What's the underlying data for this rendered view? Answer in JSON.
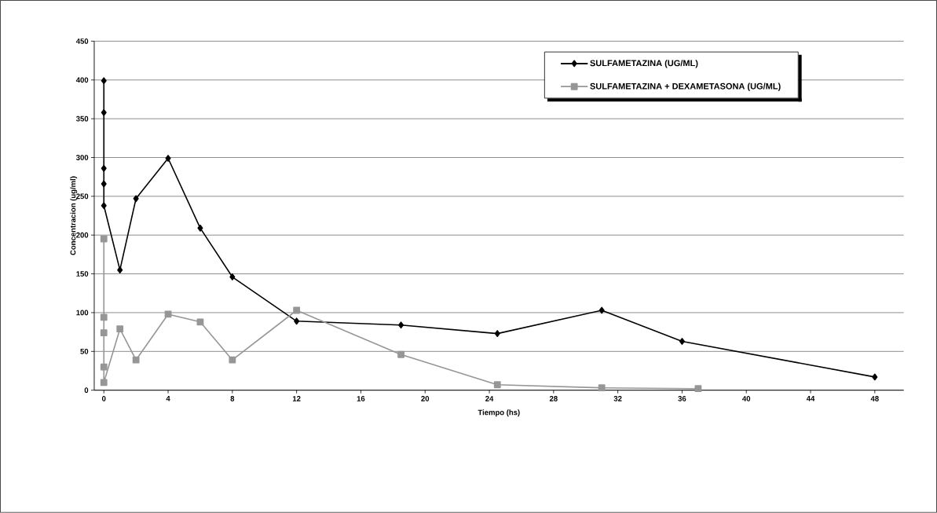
{
  "chart_data": {
    "type": "line",
    "xlabel": "Tiempo (hs)",
    "ylabel": "Concentracion (ug/ml)",
    "xlim": [
      -0.6,
      49.8
    ],
    "ylim": [
      0,
      450
    ],
    "xticks": [
      0,
      4,
      8,
      12,
      16,
      20,
      24,
      28,
      32,
      36,
      40,
      44,
      48
    ],
    "yticks": [
      0,
      50,
      100,
      150,
      200,
      250,
      300,
      350,
      400,
      450
    ],
    "grid": "y",
    "legend": "top right",
    "line_style": "solid",
    "series": [
      {
        "name": "SULFAMETAZINA (UG/ML)",
        "color": "#000000",
        "marker": "diamond",
        "x": [
          0,
          0,
          0,
          0,
          0,
          1,
          2,
          4,
          6,
          8,
          12,
          18.5,
          24.5,
          31,
          36,
          48
        ],
        "values": [
          399,
          358,
          286,
          266,
          238,
          155,
          247,
          299,
          209,
          146,
          89,
          84,
          73,
          103,
          63,
          17
        ]
      },
      {
        "name": "SULFAMETAZINA + DEXAMETASONA (UG/ML)",
        "color": "#969696",
        "marker": "square",
        "x": [
          0,
          0,
          0,
          0,
          0,
          1,
          2,
          4,
          6,
          8,
          12,
          18.5,
          24.5,
          31,
          37
        ],
        "values": [
          195,
          94,
          74,
          30,
          10,
          79,
          39,
          98,
          88,
          39,
          103,
          46,
          7,
          3,
          2
        ]
      }
    ]
  }
}
